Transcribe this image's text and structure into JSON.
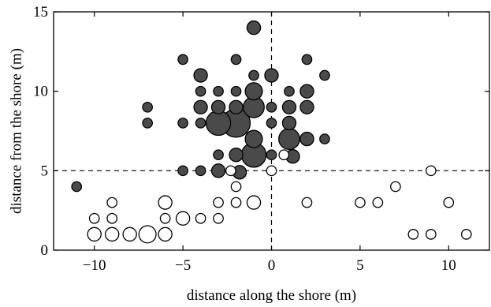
{
  "chart_data": {
    "type": "scatter",
    "xlabel": "distance along the shore (m)",
    "ylabel": "distance from the shore (m)",
    "xlim": [
      -12.3,
      12.3
    ],
    "ylim": [
      0,
      15
    ],
    "x_ticks": [
      -10,
      -5,
      0,
      5,
      10
    ],
    "x_tick_labels": [
      "−10",
      "−5",
      "0",
      "5",
      "10"
    ],
    "y_ticks": [
      0,
      5,
      10,
      15
    ],
    "y_tick_labels": [
      "0",
      "5",
      "10",
      "15"
    ],
    "reference_lines": {
      "x": 0,
      "y": 5,
      "style": "dashed"
    },
    "grid": false,
    "marker_colors": {
      "filled": "#4a4a4a",
      "open": "#ffffff",
      "edge": "#000000"
    },
    "series": [
      {
        "marker": "filled",
        "points": [
          {
            "x": -1,
            "y": 14,
            "size": 2
          },
          {
            "x": -5,
            "y": 12,
            "size": 1
          },
          {
            "x": -2,
            "y": 12,
            "size": 1
          },
          {
            "x": 2,
            "y": 12,
            "size": 1
          },
          {
            "x": -4,
            "y": 11,
            "size": 2
          },
          {
            "x": -1,
            "y": 11,
            "size": 1
          },
          {
            "x": 0,
            "y": 11,
            "size": 2
          },
          {
            "x": 3,
            "y": 11,
            "size": 1
          },
          {
            "x": -4,
            "y": 10,
            "size": 1
          },
          {
            "x": -3,
            "y": 10,
            "size": 1
          },
          {
            "x": -2,
            "y": 10,
            "size": 1
          },
          {
            "x": -1,
            "y": 10,
            "size": 3
          },
          {
            "x": 1,
            "y": 10,
            "size": 1
          },
          {
            "x": 2,
            "y": 10,
            "size": 2
          },
          {
            "x": -7,
            "y": 9,
            "size": 1
          },
          {
            "x": -4,
            "y": 9,
            "size": 2
          },
          {
            "x": -3,
            "y": 9,
            "size": 2
          },
          {
            "x": -2,
            "y": 9,
            "size": 2
          },
          {
            "x": -1,
            "y": 9,
            "size": 4
          },
          {
            "x": 0,
            "y": 9,
            "size": 1
          },
          {
            "x": 1,
            "y": 9,
            "size": 2
          },
          {
            "x": 2,
            "y": 9,
            "size": 2
          },
          {
            "x": -7,
            "y": 8,
            "size": 1
          },
          {
            "x": -5,
            "y": 8,
            "size": 1
          },
          {
            "x": -4,
            "y": 8,
            "size": 1
          },
          {
            "x": -3,
            "y": 8,
            "size": 5
          },
          {
            "x": -2,
            "y": 8,
            "size": 6
          },
          {
            "x": 0,
            "y": 8,
            "size": 1
          },
          {
            "x": 1,
            "y": 8,
            "size": 2
          },
          {
            "x": -1,
            "y": 7,
            "size": 3
          },
          {
            "x": 1,
            "y": 7,
            "size": 4
          },
          {
            "x": 2,
            "y": 7,
            "size": 2
          },
          {
            "x": 3,
            "y": 7,
            "size": 1
          },
          {
            "x": -3,
            "y": 6,
            "size": 1
          },
          {
            "x": -2,
            "y": 6,
            "size": 2
          },
          {
            "x": -1,
            "y": 6,
            "size": 5
          },
          {
            "x": 0,
            "y": 6,
            "size": 1
          },
          {
            "x": 1.2,
            "y": 5.9,
            "size": 2
          },
          {
            "x": -11,
            "y": 4,
            "size": 1
          },
          {
            "x": -5,
            "y": 5,
            "size": 1
          },
          {
            "x": -4,
            "y": 5,
            "size": 1
          },
          {
            "x": -3,
            "y": 5,
            "size": 2
          },
          {
            "x": -1.8,
            "y": 4.9,
            "size": 2
          }
        ]
      },
      {
        "marker": "open",
        "points": [
          {
            "x": -2.3,
            "y": 5,
            "size": 1
          },
          {
            "x": 0,
            "y": 5,
            "size": 1
          },
          {
            "x": 0.7,
            "y": 6,
            "size": 1
          },
          {
            "x": 9,
            "y": 5,
            "size": 1
          },
          {
            "x": -2,
            "y": 4,
            "size": 1
          },
          {
            "x": 7,
            "y": 4,
            "size": 1
          },
          {
            "x": -9,
            "y": 3,
            "size": 1
          },
          {
            "x": -6,
            "y": 3,
            "size": 2
          },
          {
            "x": -3,
            "y": 3,
            "size": 1
          },
          {
            "x": -2,
            "y": 3,
            "size": 1
          },
          {
            "x": -1,
            "y": 3,
            "size": 2
          },
          {
            "x": 2,
            "y": 3,
            "size": 1
          },
          {
            "x": 5,
            "y": 3,
            "size": 1
          },
          {
            "x": 6,
            "y": 3,
            "size": 1
          },
          {
            "x": 10,
            "y": 3,
            "size": 1
          },
          {
            "x": -10,
            "y": 2,
            "size": 1
          },
          {
            "x": -9,
            "y": 2,
            "size": 1
          },
          {
            "x": -6,
            "y": 2,
            "size": 1
          },
          {
            "x": -5,
            "y": 2,
            "size": 2
          },
          {
            "x": -4,
            "y": 2,
            "size": 1
          },
          {
            "x": -3,
            "y": 2,
            "size": 1
          },
          {
            "x": -10,
            "y": 1,
            "size": 2
          },
          {
            "x": -9,
            "y": 1,
            "size": 2
          },
          {
            "x": -8,
            "y": 1,
            "size": 2
          },
          {
            "x": -7,
            "y": 1,
            "size": 3
          },
          {
            "x": -6,
            "y": 1,
            "size": 2
          },
          {
            "x": 8,
            "y": 1,
            "size": 1
          },
          {
            "x": 9,
            "y": 1,
            "size": 1
          },
          {
            "x": 11,
            "y": 1,
            "size": 1
          }
        ]
      }
    ]
  }
}
